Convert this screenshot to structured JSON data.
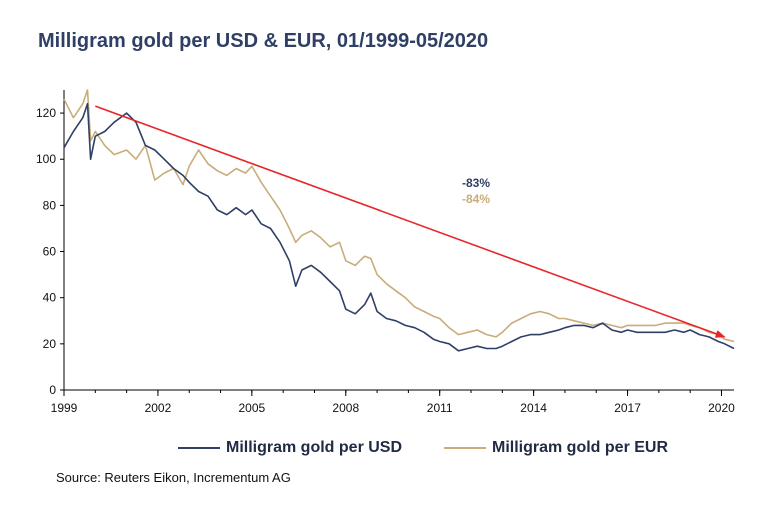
{
  "chart_data": {
    "type": "line",
    "title": "Milligram gold per USD & EUR, 01/1999-05/2020",
    "xlim": [
      1999,
      2020.4
    ],
    "ylim": [
      0,
      130
    ],
    "y_ticks": [
      0,
      20,
      40,
      60,
      80,
      100,
      120
    ],
    "x_ticks": [
      1999,
      2002,
      2005,
      2008,
      2011,
      2014,
      2017,
      2020
    ],
    "x_tick_labels": [
      "1999",
      "2002",
      "2005",
      "2008",
      "2011",
      "2014",
      "2017",
      "2020"
    ],
    "grid": false,
    "legend_position": "bottom",
    "series": [
      {
        "name": "Milligram gold per USD",
        "color": "#2f3f66",
        "x": [
          1999.0,
          1999.3,
          1999.6,
          1999.75,
          1999.85,
          2000.0,
          2000.3,
          2000.6,
          2001.0,
          2001.3,
          2001.6,
          2001.9,
          2002.2,
          2002.5,
          2002.8,
          2003.0,
          2003.3,
          2003.6,
          2003.9,
          2004.2,
          2004.5,
          2004.8,
          2005.0,
          2005.3,
          2005.6,
          2005.9,
          2006.2,
          2006.4,
          2006.6,
          2006.9,
          2007.2,
          2007.5,
          2007.8,
          2008.0,
          2008.3,
          2008.6,
          2008.8,
          2009.0,
          2009.3,
          2009.6,
          2009.9,
          2010.2,
          2010.5,
          2010.8,
          2011.0,
          2011.3,
          2011.6,
          2011.9,
          2012.2,
          2012.5,
          2012.8,
          2013.0,
          2013.3,
          2013.6,
          2013.9,
          2014.2,
          2014.5,
          2014.8,
          2015.0,
          2015.3,
          2015.6,
          2015.9,
          2016.2,
          2016.5,
          2016.8,
          2017.0,
          2017.3,
          2017.6,
          2017.9,
          2018.2,
          2018.5,
          2018.8,
          2019.0,
          2019.3,
          2019.6,
          2019.9,
          2020.1,
          2020.4
        ],
        "y": [
          105,
          112,
          118,
          124,
          100,
          110,
          112,
          116,
          120,
          116,
          106,
          104,
          100,
          96,
          93,
          90,
          86,
          84,
          78,
          76,
          79,
          76,
          78,
          72,
          70,
          64,
          56,
          45,
          52,
          54,
          51,
          47,
          43,
          35,
          33,
          37,
          42,
          34,
          31,
          30,
          28,
          27,
          25,
          22,
          21,
          20,
          17,
          18,
          19,
          18,
          18,
          19,
          21,
          23,
          24,
          24,
          25,
          26,
          27,
          28,
          28,
          27,
          29,
          26,
          25,
          26,
          25,
          25,
          25,
          25,
          26,
          25,
          26,
          24,
          23,
          21,
          20,
          18
        ]
      },
      {
        "name": "Milligram gold per EUR",
        "color": "#c8ad7a",
        "x": [
          1999.0,
          1999.3,
          1999.6,
          1999.75,
          1999.85,
          2000.0,
          2000.3,
          2000.6,
          2001.0,
          2001.3,
          2001.6,
          2001.9,
          2002.2,
          2002.5,
          2002.8,
          2003.0,
          2003.3,
          2003.6,
          2003.9,
          2004.2,
          2004.5,
          2004.8,
          2005.0,
          2005.3,
          2005.6,
          2005.9,
          2006.2,
          2006.4,
          2006.6,
          2006.9,
          2007.2,
          2007.5,
          2007.8,
          2008.0,
          2008.3,
          2008.6,
          2008.8,
          2009.0,
          2009.3,
          2009.6,
          2009.9,
          2010.2,
          2010.5,
          2010.8,
          2011.0,
          2011.3,
          2011.6,
          2011.9,
          2012.2,
          2012.5,
          2012.8,
          2013.0,
          2013.3,
          2013.6,
          2013.9,
          2014.2,
          2014.5,
          2014.8,
          2015.0,
          2015.3,
          2015.6,
          2015.9,
          2016.2,
          2016.5,
          2016.8,
          2017.0,
          2017.3,
          2017.6,
          2017.9,
          2018.2,
          2018.5,
          2018.8,
          2019.0,
          2019.3,
          2019.6,
          2019.9,
          2020.1,
          2020.4
        ],
        "y": [
          126,
          118,
          124,
          130,
          108,
          112,
          106,
          102,
          104,
          100,
          106,
          91,
          94,
          96,
          89,
          97,
          104,
          98,
          95,
          93,
          96,
          94,
          97,
          90,
          84,
          78,
          70,
          64,
          67,
          69,
          66,
          62,
          64,
          56,
          54,
          58,
          57,
          50,
          46,
          43,
          40,
          36,
          34,
          32,
          31,
          27,
          24,
          25,
          26,
          24,
          23,
          25,
          29,
          31,
          33,
          34,
          33,
          31,
          31,
          30,
          29,
          28,
          29,
          28,
          27,
          28,
          28,
          28,
          28,
          29,
          29,
          29,
          28,
          27,
          25,
          24,
          22,
          21
        ]
      }
    ],
    "trend_arrow": {
      "from": [
        2000,
        123
      ],
      "to": [
        2020.1,
        23
      ],
      "color": "#e8262a"
    },
    "annotations": [
      {
        "text": "-83%",
        "color": "#2f3f66"
      },
      {
        "text": "-84%",
        "color": "#c8ad7a"
      }
    ]
  },
  "legend": {
    "usd_label": "Milligram gold per USD",
    "eur_label": "Milligram gold per EUR"
  },
  "source": "Source: Reuters Eikon, Incrementum AG"
}
